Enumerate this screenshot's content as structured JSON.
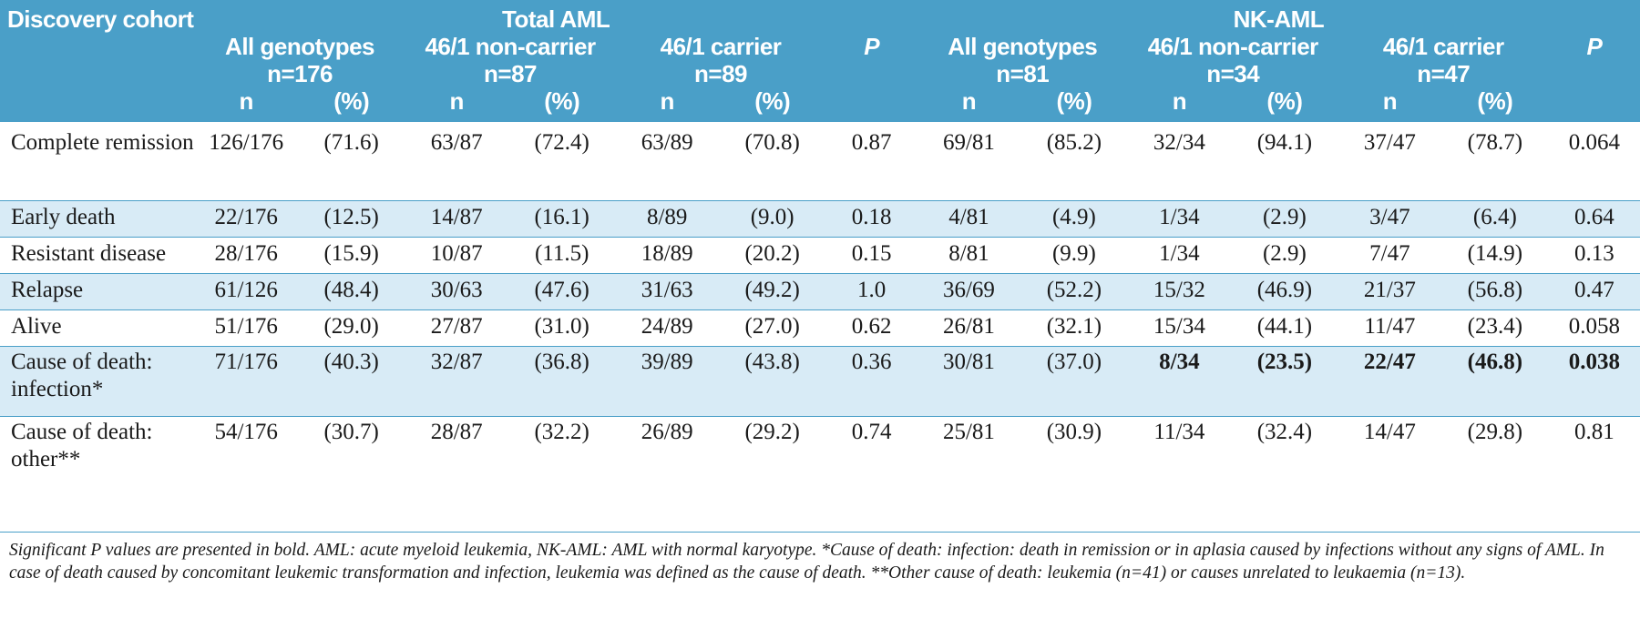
{
  "header": {
    "title": "Discovery cohort",
    "groups": [
      "Total AML",
      "NK-AML"
    ],
    "sub": [
      {
        "label": "All genotypes",
        "n": "n=176"
      },
      {
        "label": "46/1 non-carrier",
        "n": "n=87"
      },
      {
        "label": "46/1 carrier",
        "n": "n=89"
      },
      {
        "label": "All genotypes",
        "n": "n=81"
      },
      {
        "label": "46/1 non-carrier",
        "n": "n=34"
      },
      {
        "label": "46/1 carrier",
        "n": "n=47"
      }
    ],
    "p_label": "P",
    "n_label": "n",
    "pct_label": "(%)"
  },
  "rows": [
    {
      "label": "Complete remission",
      "cells": [
        "126/176",
        "(71.6)",
        "63/87",
        "(72.4)",
        "63/89",
        "(70.8)",
        "0.87",
        "69/81",
        "(85.2)",
        "32/34",
        "(94.1)",
        "37/47",
        "(78.7)",
        "0.064"
      ]
    },
    {
      "label": "Early death",
      "cells": [
        "22/176",
        "(12.5)",
        "14/87",
        "(16.1)",
        "8/89",
        "(9.0)",
        "0.18",
        "4/81",
        "(4.9)",
        "1/34",
        "(2.9)",
        "3/47",
        "(6.4)",
        "0.64"
      ]
    },
    {
      "label": "Resistant disease",
      "cells": [
        "28/176",
        "(15.9)",
        "10/87",
        "(11.5)",
        "18/89",
        "(20.2)",
        "0.15",
        "8/81",
        "(9.9)",
        "1/34",
        "(2.9)",
        "7/47",
        "(14.9)",
        "0.13"
      ]
    },
    {
      "label": "Relapse",
      "cells": [
        "61/126",
        "(48.4)",
        "30/63",
        "(47.6)",
        "31/63",
        "(49.2)",
        "1.0",
        "36/69",
        "(52.2)",
        "15/32",
        "(46.9)",
        "21/37",
        "(56.8)",
        "0.47"
      ]
    },
    {
      "label": "Alive",
      "cells": [
        "51/176",
        "(29.0)",
        "27/87",
        "(31.0)",
        "24/89",
        "(27.0)",
        "0.62",
        "26/81",
        "(32.1)",
        "15/34",
        "(44.1)",
        "11/47",
        "(23.4)",
        "0.058"
      ]
    },
    {
      "label": "Cause of death: infection*",
      "cells": [
        "71/176",
        "(40.3)",
        "32/87",
        "(36.8)",
        "39/89",
        "(43.8)",
        "0.36",
        "30/81",
        "(37.0)",
        "8/34",
        "(23.5)",
        "22/47",
        "(46.8)",
        "0.038"
      ]
    },
    {
      "label": "Cause of death: other**",
      "cells": [
        "54/176",
        "(30.7)",
        "28/87",
        "(32.2)",
        "26/89",
        "(29.2)",
        "0.74",
        "25/81",
        "(30.9)",
        "11/34",
        "(32.4)",
        "14/47",
        "(29.8)",
        "0.81"
      ]
    }
  ],
  "footnote": "Significant P values are presented in bold. AML: acute myeloid leukemia, NK-AML: AML with normal karyotype. *Cause of death: infection: death in remission or in aplasia caused by infections without any signs of AML. In case of death caused by concomitant leukemic transformation and infection, leukemia was defined as the cause of death. **Other cause of death: leukemia (n=41) or causes unrelated to leukaemia (n=13).",
  "colors": {
    "header_bg": "#4a9fc8",
    "shade_bg": "#d8ebf6",
    "rule": "#4a9fc8"
  }
}
